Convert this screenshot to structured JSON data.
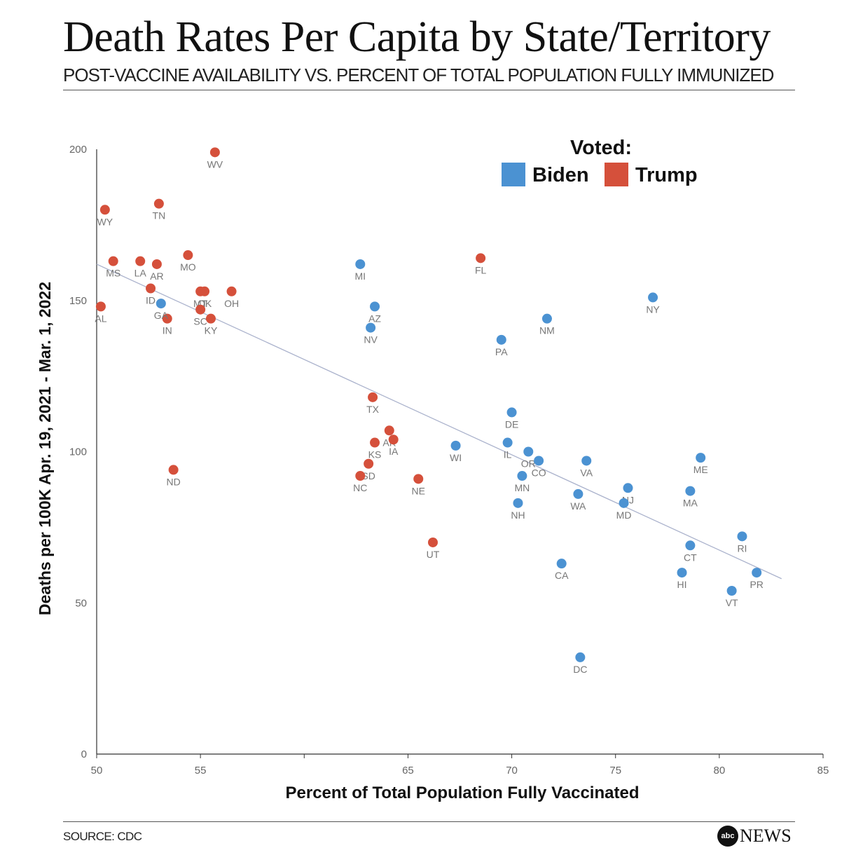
{
  "header": {
    "title": "Death Rates Per Capita by State/Territory",
    "subtitle": "POST-VACCINE AVAILABILITY VS. PERCENT OF TOTAL POPULATION FULLY IMMUNIZED"
  },
  "footer": {
    "source": "SOURCE: CDC",
    "brand_badge": "abc",
    "brand_name": "NEWS"
  },
  "colors": {
    "Biden": "#4b92d2",
    "Trump": "#d5503b",
    "trend": "#aab2cc",
    "axis": "#333333"
  },
  "chart_data": {
    "type": "scatter",
    "xlabel": "Percent of Total Population Fully Vaccinated",
    "ylabel": "Deaths per 100K Apr. 19, 2021 - Mar. 1, 2022",
    "xlim": [
      50,
      85
    ],
    "ylim": [
      0,
      200
    ],
    "xticks": [
      50,
      55,
      60,
      65,
      70,
      75,
      80,
      85
    ],
    "xtick_labels": [
      "50",
      "55",
      "",
      "65",
      "70",
      "75",
      "80",
      "85"
    ],
    "yticks": [
      0,
      50,
      100,
      150,
      200
    ],
    "grid": false,
    "legend": {
      "title": "Voted:",
      "placement": "top-right",
      "entries": [
        "Biden",
        "Trump"
      ]
    },
    "trendline": {
      "x": [
        50,
        83
      ],
      "y": [
        162,
        58
      ]
    },
    "points": [
      {
        "label": "WV",
        "x": 55.7,
        "y": 199,
        "group": "Trump"
      },
      {
        "label": "WY",
        "x": 50.4,
        "y": 180,
        "group": "Trump"
      },
      {
        "label": "TN",
        "x": 53.0,
        "y": 182,
        "group": "Trump"
      },
      {
        "label": "MS",
        "x": 50.8,
        "y": 163,
        "group": "Trump"
      },
      {
        "label": "LA",
        "x": 52.1,
        "y": 163,
        "group": "Trump"
      },
      {
        "label": "AR",
        "x": 52.9,
        "y": 162,
        "group": "Trump"
      },
      {
        "label": "MO",
        "x": 54.4,
        "y": 165,
        "group": "Trump"
      },
      {
        "label": "ID",
        "x": 52.6,
        "y": 154,
        "group": "Trump"
      },
      {
        "label": "AL",
        "x": 50.2,
        "y": 148,
        "group": "Trump"
      },
      {
        "label": "IN",
        "x": 53.4,
        "y": 144,
        "group": "Trump"
      },
      {
        "label": "MT",
        "x": 55.0,
        "y": 153,
        "group": "Trump"
      },
      {
        "label": "OK",
        "x": 55.2,
        "y": 153,
        "group": "Trump"
      },
      {
        "label": "OH",
        "x": 56.5,
        "y": 153,
        "group": "Trump"
      },
      {
        "label": "SC",
        "x": 55.0,
        "y": 147,
        "group": "Trump"
      },
      {
        "label": "KY",
        "x": 55.5,
        "y": 144,
        "group": "Trump"
      },
      {
        "label": "FL",
        "x": 68.5,
        "y": 164,
        "group": "Trump"
      },
      {
        "label": "TX",
        "x": 63.3,
        "y": 118,
        "group": "Trump"
      },
      {
        "label": "AK",
        "x": 64.1,
        "y": 107,
        "group": "Trump"
      },
      {
        "label": "IA",
        "x": 64.3,
        "y": 104,
        "group": "Trump"
      },
      {
        "label": "KS",
        "x": 63.4,
        "y": 103,
        "group": "Trump"
      },
      {
        "label": "SD",
        "x": 63.1,
        "y": 96,
        "group": "Trump"
      },
      {
        "label": "NC",
        "x": 62.7,
        "y": 92,
        "group": "Trump"
      },
      {
        "label": "NE",
        "x": 65.5,
        "y": 91,
        "group": "Trump"
      },
      {
        "label": "ND",
        "x": 53.7,
        "y": 94,
        "group": "Trump"
      },
      {
        "label": "UT",
        "x": 66.2,
        "y": 70,
        "group": "Trump"
      },
      {
        "label": "GA",
        "x": 53.1,
        "y": 149,
        "group": "Biden"
      },
      {
        "label": "MI",
        "x": 62.7,
        "y": 162,
        "group": "Biden"
      },
      {
        "label": "AZ",
        "x": 63.4,
        "y": 148,
        "group": "Biden"
      },
      {
        "label": "NV",
        "x": 63.2,
        "y": 141,
        "group": "Biden"
      },
      {
        "label": "PA",
        "x": 69.5,
        "y": 137,
        "group": "Biden"
      },
      {
        "label": "NM",
        "x": 71.7,
        "y": 144,
        "group": "Biden"
      },
      {
        "label": "NY",
        "x": 76.8,
        "y": 151,
        "group": "Biden"
      },
      {
        "label": "DE",
        "x": 70.0,
        "y": 113,
        "group": "Biden"
      },
      {
        "label": "WI",
        "x": 67.3,
        "y": 102,
        "group": "Biden"
      },
      {
        "label": "IL",
        "x": 69.8,
        "y": 103,
        "group": "Biden"
      },
      {
        "label": "OR",
        "x": 70.8,
        "y": 100,
        "group": "Biden"
      },
      {
        "label": "CO",
        "x": 71.3,
        "y": 97,
        "group": "Biden"
      },
      {
        "label": "MN",
        "x": 70.5,
        "y": 92,
        "group": "Biden"
      },
      {
        "label": "NH",
        "x": 70.3,
        "y": 83,
        "group": "Biden"
      },
      {
        "label": "VA",
        "x": 73.6,
        "y": 97,
        "group": "Biden"
      },
      {
        "label": "WA",
        "x": 73.2,
        "y": 86,
        "group": "Biden"
      },
      {
        "label": "CA",
        "x": 72.4,
        "y": 63,
        "group": "Biden"
      },
      {
        "label": "DC",
        "x": 73.3,
        "y": 32,
        "group": "Biden"
      },
      {
        "label": "NJ",
        "x": 75.6,
        "y": 88,
        "group": "Biden"
      },
      {
        "label": "MD",
        "x": 75.4,
        "y": 83,
        "group": "Biden"
      },
      {
        "label": "ME",
        "x": 79.1,
        "y": 98,
        "group": "Biden"
      },
      {
        "label": "MA",
        "x": 78.6,
        "y": 87,
        "group": "Biden"
      },
      {
        "label": "CT",
        "x": 78.6,
        "y": 69,
        "group": "Biden"
      },
      {
        "label": "HI",
        "x": 78.2,
        "y": 60,
        "group": "Biden"
      },
      {
        "label": "RI",
        "x": 81.1,
        "y": 72,
        "group": "Biden"
      },
      {
        "label": "PR",
        "x": 81.8,
        "y": 60,
        "group": "Biden"
      },
      {
        "label": "VT",
        "x": 80.6,
        "y": 54,
        "group": "Biden"
      }
    ]
  }
}
